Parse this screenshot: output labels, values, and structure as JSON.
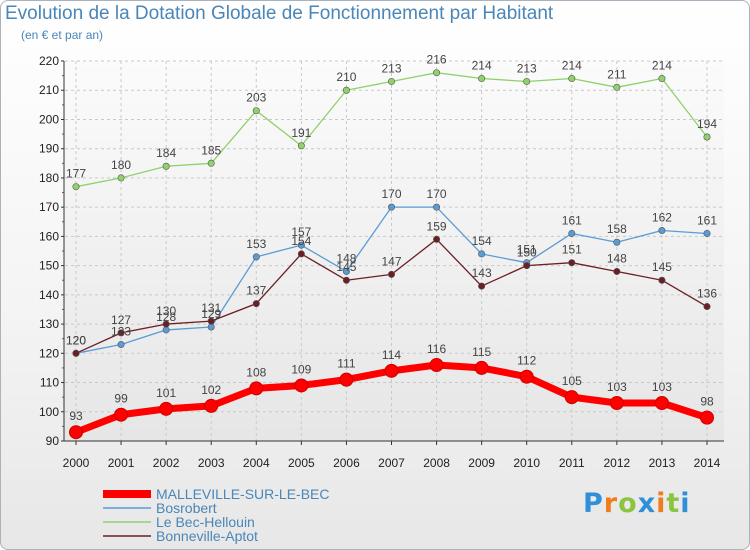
{
  "chart_data": {
    "type": "line",
    "title": "Evolution de la Dotation Globale de Fonctionnement par Habitant",
    "subtitle": "(en € et par an)",
    "xlabel": "",
    "ylabel": "",
    "x": [
      "2000",
      "2001",
      "2002",
      "2003",
      "2004",
      "2005",
      "2006",
      "2007",
      "2008",
      "2009",
      "2010",
      "2011",
      "2012",
      "2013",
      "2014"
    ],
    "ylim": [
      90,
      220
    ],
    "yticks": [
      90,
      100,
      110,
      120,
      130,
      140,
      150,
      160,
      170,
      180,
      190,
      200,
      210,
      220
    ],
    "grid": true,
    "legend_position": "bottom-left",
    "series": [
      {
        "name": "MALLEVILLE-SUR-LE-BEC",
        "color": "#ff0000",
        "emphasis": true,
        "values": [
          93,
          99,
          101,
          102,
          108,
          109,
          111,
          114,
          116,
          115,
          112,
          105,
          103,
          103,
          98
        ]
      },
      {
        "name": "Bosrobert",
        "color": "#5b9bd5",
        "values": [
          120,
          123,
          128,
          129,
          153,
          157,
          148,
          170,
          170,
          154,
          151,
          161,
          158,
          162,
          161
        ]
      },
      {
        "name": "Le Bec-Hellouin",
        "color": "#8fd16b",
        "values": [
          177,
          180,
          184,
          185,
          203,
          191,
          210,
          213,
          216,
          214,
          213,
          214,
          211,
          214,
          194
        ]
      },
      {
        "name": "Bonneville-Aptot",
        "color": "#6b1f24",
        "values": [
          120,
          127,
          130,
          131,
          137,
          154,
          145,
          147,
          159,
          143,
          150,
          151,
          148,
          145,
          136
        ]
      }
    ]
  },
  "brand": {
    "logo_text": "Proxiti"
  }
}
